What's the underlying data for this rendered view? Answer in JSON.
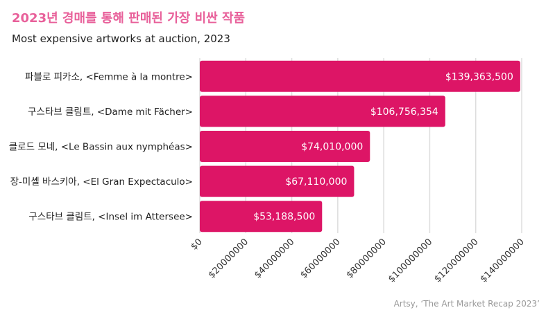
{
  "chart_data": {
    "type": "bar",
    "orientation": "horizontal",
    "title": "2023년 경매를 통해 판매된 가장 비싼 작품",
    "subtitle": "Most expensive artworks at auction, 2023",
    "categories": [
      "파블로 피카소, <Femme à la montre>",
      "구스타브 클림트, <Dame mit Fächer>",
      "클로드 모네, <Le Bassin aux nymphéas>",
      "장-미셸 바스키아, <El Gran Expectaculo>",
      "구스타브 클림트, <Insel im Attersee>"
    ],
    "values": [
      139363500,
      106756354,
      74010000,
      67110000,
      53188500
    ],
    "data_labels": [
      "$139,363,500",
      "$106,756,354",
      "$74,010,000",
      "$67,110,000",
      "$53,188,500"
    ],
    "xlim": [
      0,
      140000000
    ],
    "x_ticks": [
      0,
      20000000,
      40000000,
      60000000,
      80000000,
      100000000,
      120000000,
      140000000
    ],
    "x_tick_labels": [
      "$0",
      "$20000000",
      "$40000000",
      "$60000000",
      "$80000000",
      "$100000000",
      "$120000000",
      "$140000000"
    ],
    "grid": "vertical",
    "bar_color": "#dd1566",
    "title_color": "#e8609a",
    "source": "Artsy, ‘The Art Market Recap 2023’"
  }
}
